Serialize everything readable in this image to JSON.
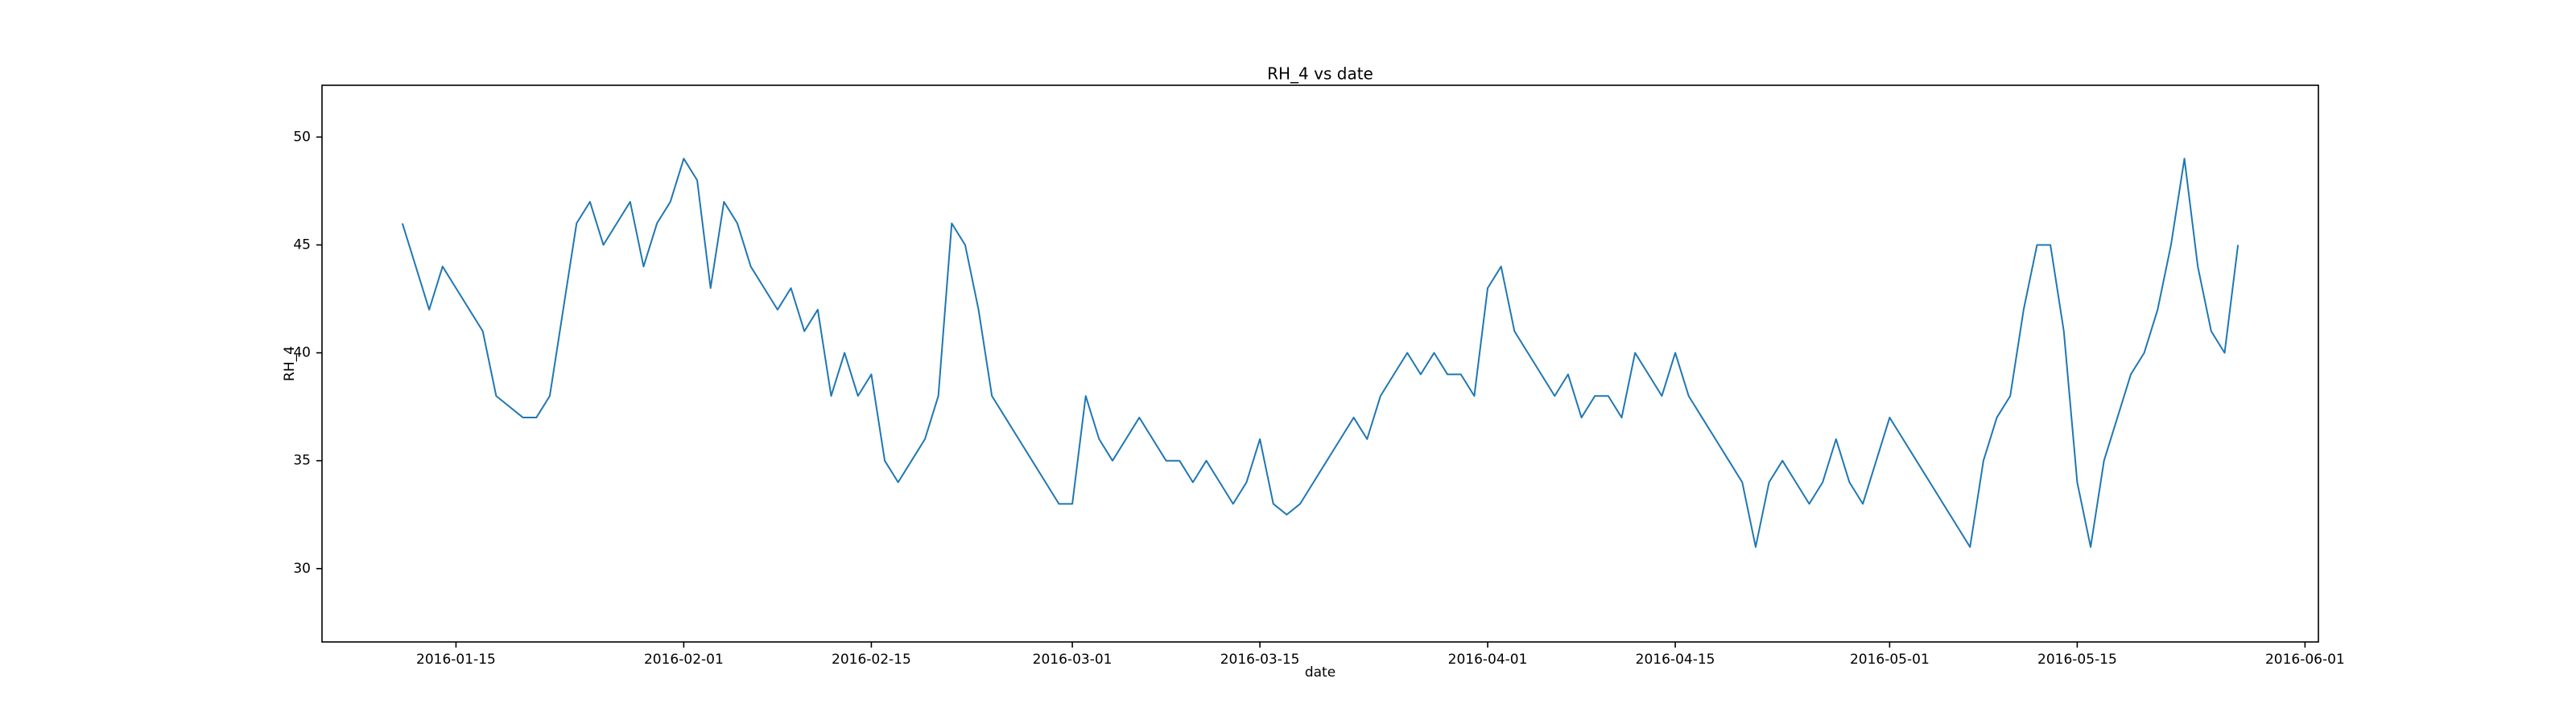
{
  "chart_data": {
    "type": "line",
    "title": "RH_4 vs date",
    "x_label": "date",
    "y_label": "RH_4",
    "color": "#1f77b4",
    "x": [
      "2016-01-11",
      "2016-01-12",
      "2016-01-13",
      "2016-01-14",
      "2016-01-15",
      "2016-01-16",
      "2016-01-17",
      "2016-01-18",
      "2016-01-19",
      "2016-01-20",
      "2016-01-21",
      "2016-01-22",
      "2016-01-23",
      "2016-01-24",
      "2016-01-25",
      "2016-01-26",
      "2016-01-27",
      "2016-01-28",
      "2016-01-29",
      "2016-01-30",
      "2016-01-31",
      "2016-02-01",
      "2016-02-02",
      "2016-02-03",
      "2016-02-04",
      "2016-02-05",
      "2016-02-06",
      "2016-02-07",
      "2016-02-08",
      "2016-02-09",
      "2016-02-10",
      "2016-02-11",
      "2016-02-12",
      "2016-02-13",
      "2016-02-14",
      "2016-02-15",
      "2016-02-16",
      "2016-02-17",
      "2016-02-18",
      "2016-02-19",
      "2016-02-20",
      "2016-02-21",
      "2016-02-22",
      "2016-02-23",
      "2016-02-24",
      "2016-02-25",
      "2016-02-26",
      "2016-02-27",
      "2016-02-28",
      "2016-02-29",
      "2016-03-01",
      "2016-03-02",
      "2016-03-03",
      "2016-03-04",
      "2016-03-05",
      "2016-03-06",
      "2016-03-07",
      "2016-03-08",
      "2016-03-09",
      "2016-03-10",
      "2016-03-11",
      "2016-03-12",
      "2016-03-13",
      "2016-03-14",
      "2016-03-15",
      "2016-03-16",
      "2016-03-17",
      "2016-03-18",
      "2016-03-19",
      "2016-03-20",
      "2016-03-21",
      "2016-03-22",
      "2016-03-23",
      "2016-03-24",
      "2016-03-25",
      "2016-03-26",
      "2016-03-27",
      "2016-03-28",
      "2016-03-29",
      "2016-03-30",
      "2016-03-31",
      "2016-04-01",
      "2016-04-02",
      "2016-04-03",
      "2016-04-04",
      "2016-04-05",
      "2016-04-06",
      "2016-04-07",
      "2016-04-08",
      "2016-04-09",
      "2016-04-10",
      "2016-04-11",
      "2016-04-12",
      "2016-04-13",
      "2016-04-14",
      "2016-04-15",
      "2016-04-16",
      "2016-04-17",
      "2016-04-18",
      "2016-04-19",
      "2016-04-20",
      "2016-04-21",
      "2016-04-22",
      "2016-04-23",
      "2016-04-24",
      "2016-04-25",
      "2016-04-26",
      "2016-04-27",
      "2016-04-28",
      "2016-04-29",
      "2016-04-30",
      "2016-05-01",
      "2016-05-02",
      "2016-05-03",
      "2016-05-04",
      "2016-05-05",
      "2016-05-06",
      "2016-05-07",
      "2016-05-08",
      "2016-05-09",
      "2016-05-10",
      "2016-05-11",
      "2016-05-12",
      "2016-05-13",
      "2016-05-14",
      "2016-05-15",
      "2016-05-16",
      "2016-05-17",
      "2016-05-18",
      "2016-05-19",
      "2016-05-20",
      "2016-05-21",
      "2016-05-22",
      "2016-05-23",
      "2016-05-24",
      "2016-05-25",
      "2016-05-26",
      "2016-05-27"
    ],
    "values": [
      46,
      44,
      42,
      44,
      43,
      42,
      41,
      38,
      37.5,
      37,
      37,
      38,
      42,
      46,
      47,
      45,
      46,
      47,
      44,
      46,
      47,
      49,
      48,
      43,
      47,
      46,
      44,
      43,
      42,
      43,
      41,
      42,
      38,
      40,
      38,
      39,
      35,
      34,
      35,
      36,
      38,
      46,
      45,
      42,
      38,
      37,
      36,
      35,
      34,
      33,
      33,
      38,
      36,
      35,
      36,
      37,
      36,
      35,
      35,
      34,
      35,
      34,
      33,
      34,
      36,
      33,
      32.5,
      33,
      34,
      35,
      36,
      37,
      36,
      38,
      39,
      40,
      39,
      40,
      39,
      39,
      38,
      43,
      44,
      41,
      40,
      39,
      38,
      39,
      37,
      38,
      38,
      37,
      40,
      39,
      38,
      40,
      38,
      37,
      36,
      35,
      34,
      31,
      34,
      35,
      34,
      33,
      34,
      36,
      34,
      33,
      35,
      37,
      36,
      35,
      34,
      33,
      32,
      31,
      35,
      37,
      38,
      42,
      45,
      45,
      41,
      34,
      31,
      35,
      37,
      39,
      40,
      42,
      45,
      49,
      44,
      41,
      40,
      45
    ],
    "xlim": [
      "2016-01-05",
      "2016-06-02"
    ],
    "xticks": [
      "2016-01-15",
      "2016-02-01",
      "2016-02-15",
      "2016-03-01",
      "2016-03-15",
      "2016-04-01",
      "2016-04-15",
      "2016-05-01",
      "2016-05-15",
      "2016-06-01"
    ],
    "ylim": [
      26.6,
      52.4
    ],
    "yticks": [
      30,
      35,
      40,
      45,
      50
    ]
  }
}
